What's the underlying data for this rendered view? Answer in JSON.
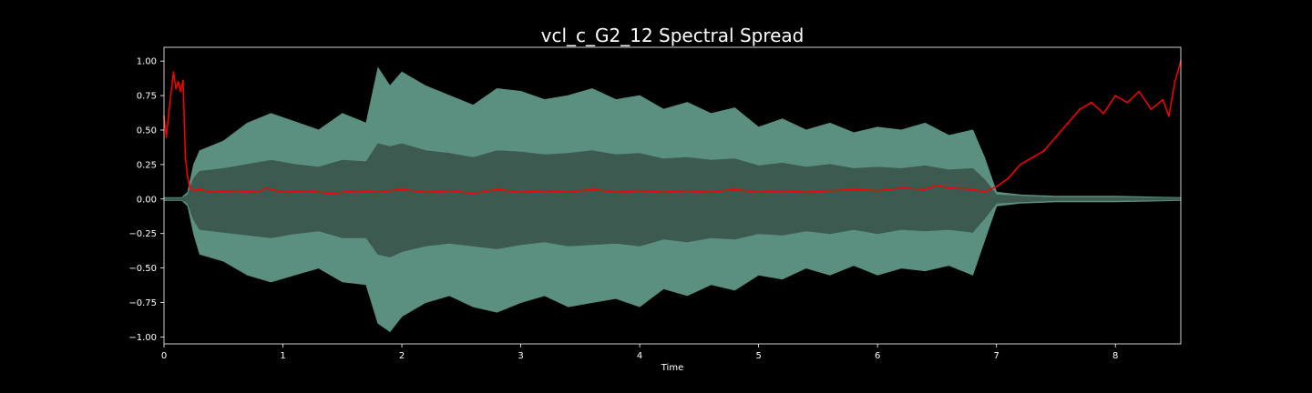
{
  "chart_data": {
    "type": "line",
    "title": "vcl_c_G2_12 Spectral Spread",
    "xlabel": "Time",
    "ylabel": "",
    "xlim": [
      0,
      8.55
    ],
    "ylim": [
      -1.05,
      1.1
    ],
    "xticks": [
      "0",
      "1",
      "2",
      "3",
      "4",
      "5",
      "6",
      "7",
      "8"
    ],
    "yticks": [
      "1.00",
      "0.75",
      "0.50",
      "0.25",
      "0.00",
      "−0.25",
      "−0.50",
      "−0.75",
      "−1.00"
    ],
    "grid": false,
    "legend": "none",
    "colors": {
      "background": "#000000",
      "waveform_outer": "#5b8f7f",
      "waveform_inner": "#3c5a50",
      "spread_line": "#ff0000",
      "axis": "#ffffff"
    },
    "waveform_envelope": {
      "x": [
        0,
        0.15,
        0.2,
        0.25,
        0.3,
        0.5,
        0.7,
        0.9,
        1.1,
        1.3,
        1.5,
        1.7,
        1.8,
        1.9,
        2.0,
        2.2,
        2.4,
        2.6,
        2.8,
        3.0,
        3.2,
        3.4,
        3.6,
        3.8,
        4.0,
        4.2,
        4.4,
        4.6,
        4.8,
        5.0,
        5.2,
        5.4,
        5.6,
        5.8,
        6.0,
        6.2,
        6.4,
        6.6,
        6.8,
        6.9,
        7.0,
        7.2,
        7.5,
        8.0,
        8.55
      ],
      "upper": [
        0.01,
        0.01,
        0.05,
        0.25,
        0.35,
        0.42,
        0.55,
        0.62,
        0.56,
        0.5,
        0.62,
        0.55,
        0.95,
        0.82,
        0.92,
        0.82,
        0.75,
        0.68,
        0.8,
        0.78,
        0.72,
        0.75,
        0.8,
        0.72,
        0.75,
        0.65,
        0.7,
        0.62,
        0.66,
        0.52,
        0.58,
        0.5,
        0.55,
        0.48,
        0.52,
        0.5,
        0.55,
        0.46,
        0.5,
        0.3,
        0.05,
        0.03,
        0.02,
        0.02,
        0.01
      ],
      "lower": [
        -0.01,
        -0.01,
        -0.05,
        -0.25,
        -0.4,
        -0.45,
        -0.55,
        -0.6,
        -0.55,
        -0.5,
        -0.6,
        -0.62,
        -0.9,
        -0.96,
        -0.85,
        -0.75,
        -0.7,
        -0.78,
        -0.82,
        -0.75,
        -0.7,
        -0.78,
        -0.75,
        -0.72,
        -0.78,
        -0.65,
        -0.7,
        -0.62,
        -0.66,
        -0.55,
        -0.58,
        -0.5,
        -0.55,
        -0.48,
        -0.55,
        -0.5,
        -0.52,
        -0.48,
        -0.55,
        -0.3,
        -0.05,
        -0.03,
        -0.02,
        -0.02,
        -0.01
      ],
      "inner_upper": [
        0.005,
        0.005,
        0.03,
        0.15,
        0.2,
        0.22,
        0.25,
        0.28,
        0.25,
        0.23,
        0.28,
        0.27,
        0.4,
        0.38,
        0.4,
        0.35,
        0.33,
        0.3,
        0.35,
        0.34,
        0.32,
        0.33,
        0.35,
        0.32,
        0.33,
        0.29,
        0.3,
        0.28,
        0.29,
        0.24,
        0.26,
        0.23,
        0.25,
        0.22,
        0.23,
        0.22,
        0.24,
        0.21,
        0.22,
        0.14,
        0.03,
        0.02,
        0.01,
        0.01,
        0.005
      ],
      "inner_lower": [
        -0.005,
        -0.005,
        -0.03,
        -0.15,
        -0.22,
        -0.24,
        -0.26,
        -0.28,
        -0.25,
        -0.23,
        -0.28,
        -0.28,
        -0.4,
        -0.42,
        -0.38,
        -0.34,
        -0.32,
        -0.34,
        -0.36,
        -0.33,
        -0.31,
        -0.34,
        -0.33,
        -0.32,
        -0.34,
        -0.29,
        -0.31,
        -0.28,
        -0.29,
        -0.25,
        -0.26,
        -0.23,
        -0.25,
        -0.22,
        -0.25,
        -0.22,
        -0.23,
        -0.22,
        -0.24,
        -0.14,
        -0.03,
        -0.02,
        -0.01,
        -0.01,
        -0.005
      ]
    },
    "series": [
      {
        "x": [
          0,
          0.02,
          0.05,
          0.08,
          0.1,
          0.12,
          0.14,
          0.16,
          0.18,
          0.2,
          0.22,
          0.25,
          0.3,
          0.4,
          0.6,
          0.8,
          0.85,
          1.0,
          1.2,
          1.4,
          1.6,
          1.8,
          2.0,
          2.2,
          2.4,
          2.6,
          2.8,
          3.0,
          3.2,
          3.4,
          3.6,
          3.8,
          4.0,
          4.2,
          4.4,
          4.6,
          4.8,
          5.0,
          5.2,
          5.4,
          5.6,
          5.8,
          6.0,
          6.2,
          6.4,
          6.5,
          6.6,
          6.8,
          6.9,
          7.0,
          7.1,
          7.2,
          7.3,
          7.4,
          7.5,
          7.6,
          7.7,
          7.8,
          7.9,
          8.0,
          8.1,
          8.2,
          8.3,
          8.4,
          8.45,
          8.5,
          8.55
        ],
        "y": [
          0.6,
          0.45,
          0.7,
          0.92,
          0.8,
          0.85,
          0.78,
          0.86,
          0.3,
          0.15,
          0.08,
          0.06,
          0.07,
          0.05,
          0.06,
          0.05,
          0.08,
          0.05,
          0.06,
          0.04,
          0.06,
          0.05,
          0.07,
          0.05,
          0.06,
          0.04,
          0.07,
          0.05,
          0.06,
          0.05,
          0.07,
          0.05,
          0.06,
          0.05,
          0.06,
          0.05,
          0.07,
          0.05,
          0.06,
          0.05,
          0.06,
          0.07,
          0.06,
          0.08,
          0.07,
          0.1,
          0.08,
          0.07,
          0.05,
          0.09,
          0.15,
          0.25,
          0.3,
          0.35,
          0.45,
          0.55,
          0.65,
          0.7,
          0.62,
          0.75,
          0.7,
          0.78,
          0.65,
          0.72,
          0.6,
          0.85,
          1.0
        ]
      }
    ]
  }
}
